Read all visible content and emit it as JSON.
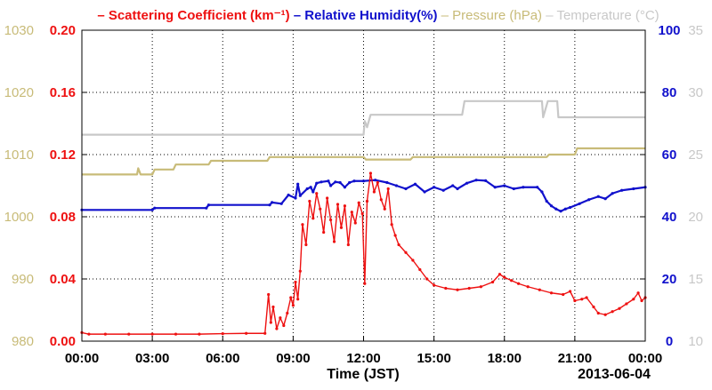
{
  "chart_data": {
    "type": "line",
    "legend": {
      "placement": "top",
      "items": [
        {
          "key": "sc",
          "dash": "–",
          "label": "Scattering Coefficient (km⁻¹)",
          "color": "#ee1111",
          "bold": true
        },
        {
          "key": "rh",
          "dash": "–",
          "label": "Relative Humidity(%)",
          "color": "#1111cc",
          "bold": true
        },
        {
          "key": "pr",
          "dash": "–",
          "label": "Pressure (hPa)",
          "color": "#c8bb78",
          "bold": false
        },
        {
          "key": "tp",
          "dash": "–",
          "label": "Temperature (°C)",
          "color": "#c8c8c8",
          "bold": false
        }
      ]
    },
    "xlabel": "Time (JST)",
    "date_label": "2013-06-04",
    "x_ticks": [
      "00:00",
      "03:00",
      "06:00",
      "09:00",
      "12:00",
      "15:00",
      "18:00",
      "21:00",
      "00:00"
    ],
    "grid": true,
    "axes": {
      "pressure": {
        "color": "#c8bb78",
        "ylim": [
          980,
          1030
        ],
        "ticks": [
          "980",
          "990",
          "1000",
          "1010",
          "1020",
          "1030"
        ]
      },
      "scattering": {
        "color": "#ee1111",
        "ylim": [
          0,
          0.2
        ],
        "ticks": [
          "0.00",
          "0.04",
          "0.08",
          "0.12",
          "0.16",
          "0.20"
        ]
      },
      "humidity": {
        "color": "#1111cc",
        "ylim": [
          0,
          100
        ],
        "ticks": [
          "0",
          "20",
          "40",
          "60",
          "80",
          "100"
        ]
      },
      "temperature": {
        "color": "#c8c8c8",
        "ylim": [
          10,
          35
        ],
        "ticks": [
          "10",
          "15",
          "20",
          "25",
          "30",
          "35"
        ]
      }
    },
    "series": [
      {
        "name": "Temperature (°C)",
        "key": "tp",
        "axis": "temperature",
        "color": "#c8c8c8",
        "markers": false,
        "points": [
          [
            0,
            26.6
          ],
          [
            12.0,
            26.6
          ],
          [
            12.05,
            27.7
          ],
          [
            12.15,
            27.2
          ],
          [
            12.3,
            28.2
          ],
          [
            16.2,
            28.2
          ],
          [
            16.3,
            29.3
          ],
          [
            19.6,
            29.3
          ],
          [
            19.65,
            28.0
          ],
          [
            19.85,
            29.3
          ],
          [
            20.25,
            29.3
          ],
          [
            20.3,
            28.0
          ],
          [
            24,
            28.0
          ]
        ]
      },
      {
        "name": "Pressure (hPa)",
        "key": "pr",
        "axis": "pressure",
        "color": "#c8bb78",
        "markers": false,
        "points": [
          [
            0,
            1006.8
          ],
          [
            2.35,
            1006.8
          ],
          [
            2.4,
            1007.8
          ],
          [
            2.5,
            1006.8
          ],
          [
            3.0,
            1006.8
          ],
          [
            3.1,
            1007.6
          ],
          [
            3.9,
            1007.6
          ],
          [
            4.0,
            1008.4
          ],
          [
            5.4,
            1008.4
          ],
          [
            5.5,
            1009.0
          ],
          [
            7.9,
            1009.0
          ],
          [
            8.0,
            1009.6
          ],
          [
            12.0,
            1009.6
          ],
          [
            12.1,
            1009.2
          ],
          [
            14.0,
            1009.2
          ],
          [
            14.1,
            1009.6
          ],
          [
            19.8,
            1009.6
          ],
          [
            19.9,
            1010.0
          ],
          [
            21.0,
            1010.0
          ],
          [
            21.1,
            1011.0
          ],
          [
            24,
            1011.0
          ]
        ]
      },
      {
        "name": "Relative Humidity(%)",
        "key": "rh",
        "axis": "humidity",
        "color": "#1111cc",
        "markers": true,
        "points": [
          [
            0,
            42.2
          ],
          [
            3.0,
            42.2
          ],
          [
            3.1,
            42.8
          ],
          [
            5.3,
            42.8
          ],
          [
            5.4,
            43.8
          ],
          [
            8.0,
            43.8
          ],
          [
            8.1,
            44.6
          ],
          [
            8.5,
            44.2
          ],
          [
            8.8,
            47.0
          ],
          [
            9.1,
            46.0
          ],
          [
            9.2,
            50.5
          ],
          [
            9.3,
            46.8
          ],
          [
            9.6,
            49.0
          ],
          [
            9.75,
            49.5
          ],
          [
            9.85,
            48.0
          ],
          [
            10.0,
            50.8
          ],
          [
            10.2,
            51.2
          ],
          [
            10.5,
            51.5
          ],
          [
            10.6,
            50.0
          ],
          [
            10.8,
            51.2
          ],
          [
            11.0,
            51.0
          ],
          [
            11.2,
            49.5
          ],
          [
            11.4,
            51.0
          ],
          [
            11.6,
            51.5
          ],
          [
            12.0,
            51.5
          ],
          [
            12.5,
            51.8
          ],
          [
            13.0,
            51.0
          ],
          [
            13.4,
            50.0
          ],
          [
            13.8,
            49.0
          ],
          [
            14.2,
            50.5
          ],
          [
            14.6,
            48.0
          ],
          [
            15.0,
            49.5
          ],
          [
            15.4,
            48.5
          ],
          [
            15.8,
            50.0
          ],
          [
            16.0,
            49.0
          ],
          [
            16.4,
            50.8
          ],
          [
            16.8,
            51.8
          ],
          [
            17.2,
            51.6
          ],
          [
            17.6,
            49.5
          ],
          [
            18.0,
            50.0
          ],
          [
            18.4,
            49.0
          ],
          [
            18.8,
            49.5
          ],
          [
            19.4,
            49.5
          ],
          [
            19.6,
            48.0
          ],
          [
            19.8,
            45.0
          ],
          [
            20.0,
            43.5
          ],
          [
            20.2,
            42.5
          ],
          [
            20.4,
            41.8
          ],
          [
            20.6,
            42.5
          ],
          [
            20.8,
            43.0
          ],
          [
            21.2,
            44.2
          ],
          [
            21.6,
            45.5
          ],
          [
            22.0,
            46.5
          ],
          [
            22.3,
            45.8
          ],
          [
            22.6,
            47.5
          ],
          [
            23.0,
            48.5
          ],
          [
            23.5,
            49.0
          ],
          [
            24,
            49.5
          ]
        ]
      },
      {
        "name": "Scattering Coefficient (km⁻¹)",
        "key": "sc",
        "axis": "scattering",
        "color": "#ee1111",
        "markers": true,
        "points": [
          [
            0,
            0.0055
          ],
          [
            0.3,
            0.0045
          ],
          [
            1.0,
            0.0045
          ],
          [
            2.0,
            0.0045
          ],
          [
            3.0,
            0.0045
          ],
          [
            4.0,
            0.0045
          ],
          [
            5.0,
            0.0045
          ],
          [
            6.0,
            0.0048
          ],
          [
            7.0,
            0.005
          ],
          [
            7.8,
            0.005
          ],
          [
            7.95,
            0.03
          ],
          [
            8.05,
            0.012
          ],
          [
            8.15,
            0.022
          ],
          [
            8.3,
            0.008
          ],
          [
            8.45,
            0.015
          ],
          [
            8.6,
            0.01
          ],
          [
            8.75,
            0.018
          ],
          [
            8.9,
            0.028
          ],
          [
            9.0,
            0.023
          ],
          [
            9.1,
            0.038
          ],
          [
            9.2,
            0.027
          ],
          [
            9.3,
            0.045
          ],
          [
            9.4,
            0.075
          ],
          [
            9.55,
            0.062
          ],
          [
            9.7,
            0.09
          ],
          [
            9.85,
            0.079
          ],
          [
            10.0,
            0.095
          ],
          [
            10.15,
            0.085
          ],
          [
            10.3,
            0.07
          ],
          [
            10.45,
            0.092
          ],
          [
            10.6,
            0.078
          ],
          [
            10.75,
            0.064
          ],
          [
            10.9,
            0.088
          ],
          [
            11.05,
            0.073
          ],
          [
            11.2,
            0.087
          ],
          [
            11.35,
            0.062
          ],
          [
            11.5,
            0.083
          ],
          [
            11.65,
            0.076
          ],
          [
            11.8,
            0.089
          ],
          [
            11.95,
            0.082
          ],
          [
            12.05,
            0.037
          ],
          [
            12.15,
            0.09
          ],
          [
            12.3,
            0.108
          ],
          [
            12.45,
            0.096
          ],
          [
            12.6,
            0.102
          ],
          [
            12.75,
            0.091
          ],
          [
            12.9,
            0.085
          ],
          [
            13.05,
            0.098
          ],
          [
            13.2,
            0.075
          ],
          [
            13.35,
            0.068
          ],
          [
            13.5,
            0.062
          ],
          [
            13.8,
            0.057
          ],
          [
            14.1,
            0.052
          ],
          [
            14.4,
            0.046
          ],
          [
            14.7,
            0.04
          ],
          [
            15.0,
            0.036
          ],
          [
            15.5,
            0.034
          ],
          [
            16.0,
            0.033
          ],
          [
            16.5,
            0.034
          ],
          [
            17.0,
            0.035
          ],
          [
            17.5,
            0.038
          ],
          [
            17.8,
            0.043
          ],
          [
            18.0,
            0.041
          ],
          [
            18.3,
            0.039
          ],
          [
            18.6,
            0.037
          ],
          [
            19.0,
            0.035
          ],
          [
            19.5,
            0.033
          ],
          [
            20.0,
            0.031
          ],
          [
            20.5,
            0.03
          ],
          [
            20.8,
            0.032
          ],
          [
            21.0,
            0.026
          ],
          [
            21.3,
            0.027
          ],
          [
            21.5,
            0.028
          ],
          [
            21.8,
            0.022
          ],
          [
            22.0,
            0.018
          ],
          [
            22.3,
            0.017
          ],
          [
            22.6,
            0.019
          ],
          [
            22.9,
            0.021
          ],
          [
            23.2,
            0.024
          ],
          [
            23.5,
            0.027
          ],
          [
            23.7,
            0.031
          ],
          [
            23.85,
            0.026
          ],
          [
            24,
            0.028
          ]
        ]
      }
    ]
  }
}
